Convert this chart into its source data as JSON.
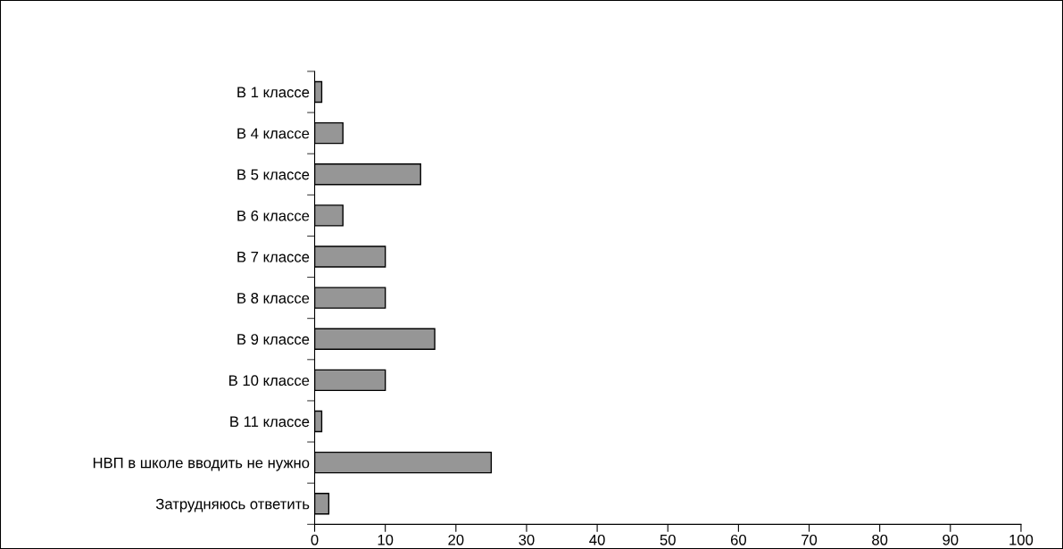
{
  "chart_data": {
    "type": "bar",
    "orientation": "horizontal",
    "categories": [
      "В 1 классе",
      "В 4 классе",
      "В 5 классе",
      "В 6 классе",
      "В 7 классе",
      "В 8 классе",
      "В 9 классе",
      "В 10 классе",
      "В 11 классе",
      "НВП в школе вводить не нужно",
      "Затрудняюсь ответить"
    ],
    "values": [
      1,
      4,
      15,
      4,
      10,
      10,
      17,
      10,
      1,
      25,
      2
    ],
    "color": "#969696",
    "xlim": [
      0,
      100
    ],
    "xticks": [
      0,
      10,
      20,
      30,
      40,
      50,
      60,
      70,
      80,
      90,
      100
    ],
    "grid": false,
    "legend": false
  }
}
